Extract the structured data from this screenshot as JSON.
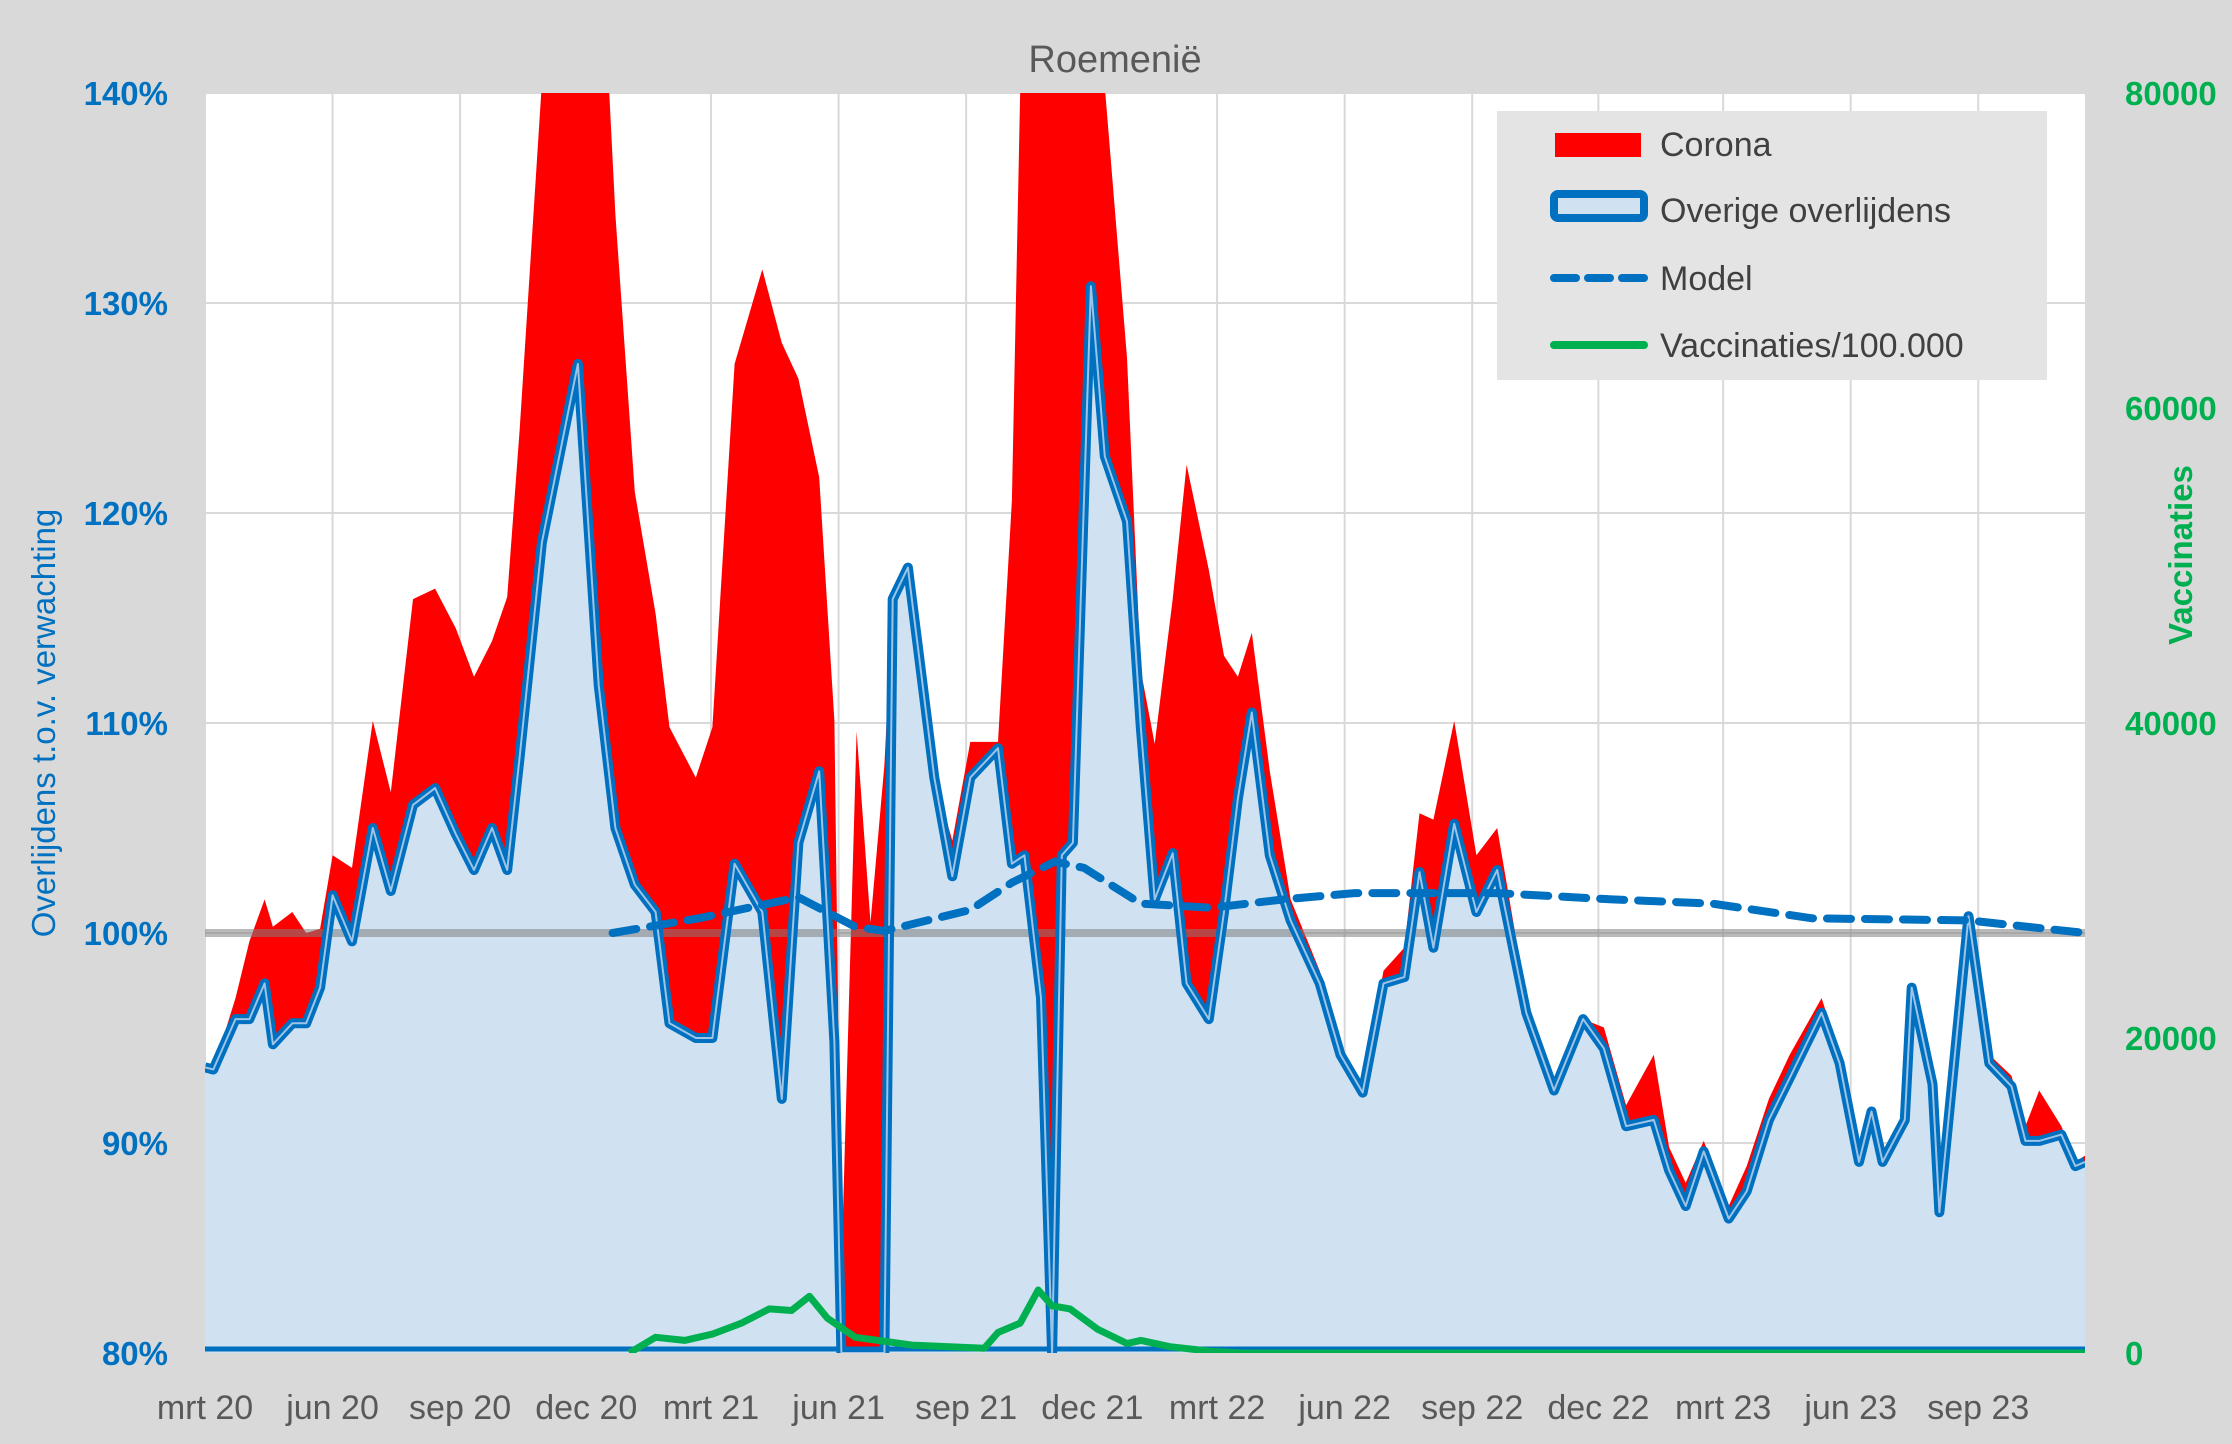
{
  "chart_data": {
    "type": "area",
    "title": "Roemenië",
    "ylabel": "Overlijdens t.o.v. verwachting",
    "y2label": "Vaccinaties",
    "ylim": [
      80,
      140
    ],
    "y2lim": [
      0,
      80000
    ],
    "xlim": [
      "2020-03-01",
      "2023-11-17"
    ],
    "grid": true,
    "legend_position": "top-right",
    "yticks": [
      "80%",
      "90%",
      "100%",
      "110%",
      "120%",
      "130%",
      "140%"
    ],
    "y2ticks": [
      "0",
      "20000",
      "40000",
      "60000",
      "80000"
    ],
    "xticks": [
      {
        "date": "2020-03-01",
        "label": "mrt 20"
      },
      {
        "date": "2020-06-01",
        "label": "jun 20"
      },
      {
        "date": "2020-09-01",
        "label": "sep 20"
      },
      {
        "date": "2020-12-01",
        "label": "dec 20"
      },
      {
        "date": "2021-03-01",
        "label": "mrt 21"
      },
      {
        "date": "2021-06-01",
        "label": "jun 21"
      },
      {
        "date": "2021-09-01",
        "label": "sep 21"
      },
      {
        "date": "2021-12-01",
        "label": "dec 21"
      },
      {
        "date": "2022-03-01",
        "label": "mrt 22"
      },
      {
        "date": "2022-06-01",
        "label": "jun 22"
      },
      {
        "date": "2022-09-01",
        "label": "sep 22"
      },
      {
        "date": "2022-12-01",
        "label": "dec 22"
      },
      {
        "date": "2023-03-01",
        "label": "mrt 23"
      },
      {
        "date": "2023-06-01",
        "label": "jun 23"
      },
      {
        "date": "2023-09-01",
        "label": "sep 23"
      }
    ],
    "reference_line": 100,
    "colors": {
      "corona": "#FF0000",
      "overige": "#0070C0",
      "overige_fill": "#D0E2F2",
      "model": "#0070C0",
      "vaccinaties": "#00B050",
      "axis_left": "#0070C0",
      "axis_right": "#00B050"
    },
    "x": [
      "2020-03-01",
      "2020-03-07",
      "2020-03-23",
      "2020-04-02",
      "2020-04-13",
      "2020-04-19",
      "2020-05-03",
      "2020-05-13",
      "2020-05-23",
      "2020-06-01",
      "2020-06-15",
      "2020-06-30",
      "2020-07-13",
      "2020-07-29",
      "2020-08-14",
      "2020-08-29",
      "2020-09-11",
      "2020-09-24",
      "2020-10-05",
      "2020-10-14",
      "2020-10-30",
      "2020-11-25",
      "2020-12-10",
      "2020-12-22",
      "2021-01-05",
      "2021-01-20",
      "2021-01-30",
      "2021-02-18",
      "2021-03-02",
      "2021-03-18",
      "2021-04-07",
      "2021-04-21",
      "2021-05-03",
      "2021-05-18",
      "2021-05-29",
      "2021-06-03",
      "2021-06-14",
      "2021-06-24",
      "2021-07-04",
      "2021-07-10",
      "2021-07-21",
      "2021-08-09",
      "2021-08-22",
      "2021-09-04",
      "2021-09-24",
      "2021-10-04",
      "2021-10-13",
      "2021-10-25",
      "2021-11-02",
      "2021-11-09",
      "2021-11-17",
      "2021-11-30",
      "2021-12-10",
      "2021-12-26",
      "2022-01-05",
      "2022-01-15",
      "2022-01-28",
      "2022-02-07",
      "2022-02-23",
      "2022-03-06",
      "2022-03-16",
      "2022-03-26",
      "2022-04-08",
      "2022-04-23",
      "2022-05-14",
      "2022-05-29",
      "2022-06-14",
      "2022-06-29",
      "2022-07-14",
      "2022-07-25",
      "2022-08-04",
      "2022-08-19",
      "2022-09-04",
      "2022-09-19",
      "2022-10-10",
      "2022-10-30",
      "2022-11-20",
      "2022-12-05",
      "2022-12-21",
      "2023-01-10",
      "2023-01-21",
      "2023-02-02",
      "2023-02-15",
      "2023-03-05",
      "2023-03-18",
      "2023-04-03",
      "2023-04-18",
      "2023-05-11",
      "2023-05-24",
      "2023-06-07",
      "2023-06-16",
      "2023-06-24",
      "2023-07-10",
      "2023-07-15",
      "2023-07-30",
      "2023-08-04",
      "2023-08-25",
      "2023-09-09",
      "2023-09-25",
      "2023-10-05",
      "2023-10-15",
      "2023-10-31",
      "2023-11-10",
      "2023-11-17"
    ],
    "series": [
      {
        "name": "Corona",
        "role": "total_top",
        "values": [
          93.6,
          93.5,
          96.9,
          99.6,
          101.6,
          100.3,
          101.0,
          100.0,
          100.2,
          103.7,
          103.1,
          110.1,
          106.7,
          115.9,
          116.4,
          114.5,
          112.2,
          113.9,
          116.0,
          124.0,
          140.5,
          150,
          150,
          134.2,
          121.0,
          115.2,
          109.8,
          107.4,
          109.8,
          127.1,
          131.6,
          128.1,
          126.4,
          121.7,
          110.1,
          84,
          109.6,
          100.5,
          108,
          115.9,
          117.4,
          107.4,
          104.4,
          109.1,
          109.1,
          120.6,
          150,
          150,
          150,
          150,
          150,
          150,
          140.3,
          127.4,
          112.5,
          109.0,
          115.9,
          122.3,
          117.3,
          113.2,
          112.2,
          114.3,
          107.7,
          101.6,
          98.2,
          94.5,
          92.8,
          98.2,
          99.3,
          105.7,
          105.4,
          110.1,
          103.7,
          105.0,
          96.9,
          92.8,
          95.9,
          95.5,
          91.8,
          94.2,
          89.8,
          88.1,
          90.1,
          87.0,
          88.9,
          92.1,
          94.2,
          96.9,
          94.2,
          89.1,
          91.5,
          89.1,
          91.1,
          97.4,
          92.8,
          86.7,
          100.8,
          94.2,
          93.2,
          90.8,
          92.5,
          90.8,
          89.1,
          89.4
        ]
      },
      {
        "name": "Overige overlijdens",
        "values": [
          93.6,
          93.5,
          95.9,
          95.9,
          97.6,
          94.7,
          95.7,
          95.7,
          97.4,
          101.8,
          99.6,
          105.0,
          102.0,
          106.1,
          106.9,
          104.7,
          103.0,
          105.0,
          103.0,
          108.4,
          118.6,
          127.1,
          111.8,
          105.0,
          102.3,
          101.0,
          95.7,
          95.0,
          95.0,
          103.3,
          101.0,
          92.1,
          104.3,
          107.7,
          94.8,
          80,
          80,
          80,
          80,
          115.9,
          117.4,
          107.4,
          102.7,
          107.4,
          108.8,
          103.3,
          103.7,
          96.9,
          80,
          103.7,
          104.3,
          130.8,
          122.7,
          119.6,
          109.8,
          101.6,
          103.8,
          97.6,
          95.9,
          101.0,
          106.4,
          110.5,
          103.7,
          100.6,
          97.6,
          94.2,
          92.4,
          97.6,
          97.9,
          102.9,
          99.3,
          105.2,
          101.0,
          103.0,
          96.2,
          92.5,
          95.9,
          94.5,
          90.8,
          91.1,
          88.7,
          87.0,
          89.6,
          86.4,
          87.7,
          91.1,
          93.1,
          96.2,
          93.8,
          89.1,
          91.5,
          89.1,
          91.1,
          97.4,
          92.8,
          86.7,
          100.8,
          93.8,
          92.7,
          90.1,
          90.1,
          90.4,
          88.9,
          89.1
        ]
      },
      {
        "name": "Model",
        "x": [
          "2020-12-20",
          "2021-02-20",
          "2021-05-03",
          "2021-06-13",
          "2021-07-04",
          "2021-09-04",
          "2021-10-04",
          "2021-11-04",
          "2021-11-25",
          "2022-01-05",
          "2022-02-25",
          "2022-04-18",
          "2022-06-08",
          "2022-09-19",
          "2022-12-11",
          "2023-02-21",
          "2023-05-04",
          "2023-08-25",
          "2023-11-17"
        ],
        "values": [
          100,
          100.7,
          101.7,
          100.3,
          100.1,
          101.1,
          102.4,
          103.4,
          103.1,
          101.4,
          101.2,
          101.6,
          101.9,
          101.9,
          101.6,
          101.4,
          100.7,
          100.6,
          100
        ]
      },
      {
        "name": "Vaccinaties/100.000",
        "axis": "right",
        "x": [
          "2021-01-01",
          "2021-01-20",
          "2021-02-10",
          "2021-03-02",
          "2021-03-23",
          "2021-04-12",
          "2021-04-28",
          "2021-05-11",
          "2021-05-24",
          "2021-06-13",
          "2021-07-24",
          "2021-09-14",
          "2021-09-24",
          "2021-10-10",
          "2021-10-23",
          "2021-11-02",
          "2021-11-15",
          "2021-12-05",
          "2021-12-26",
          "2022-01-05",
          "2022-01-26",
          "2022-02-25",
          "2022-03-18",
          "2023-11-17"
        ],
        "values": [
          0,
          1000,
          800,
          1200,
          1900,
          2800,
          2700,
          3600,
          2200,
          1000,
          500,
          300,
          1300,
          1900,
          4000,
          3000,
          2800,
          1500,
          600,
          800,
          400,
          100,
          0,
          0
        ]
      }
    ]
  },
  "legend": [
    {
      "label": "Corona",
      "icon": "red-area-swatch"
    },
    {
      "label": "Overige overlijdens",
      "icon": "blue-outlined-area-swatch"
    },
    {
      "label": "Model",
      "icon": "dashed-line-swatch"
    },
    {
      "label": "Vaccinaties/100.000",
      "icon": "green-line-swatch"
    }
  ]
}
